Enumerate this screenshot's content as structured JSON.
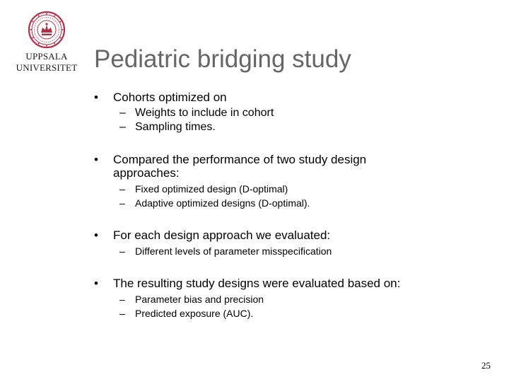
{
  "logo": {
    "line1": "UPPSALA",
    "line2": "UNIVERSITET",
    "seal_color": "#b0304a"
  },
  "slide": {
    "title": "Pediatric bridging study",
    "bullet_symbol": "•",
    "dash_symbol": "–",
    "bullets": [
      {
        "text": "Cohorts optimized on",
        "subs": [
          "Weights to include in cohort",
          "Sampling times."
        ]
      },
      {
        "text_line1": "Compared the performance of two study design",
        "text_line2": "approaches:",
        "subs": [
          "Fixed optimized design (D-optimal)",
          "Adaptive optimized designs (D-optimal)."
        ]
      },
      {
        "text": "For each design approach we evaluated:",
        "subs": [
          "Different levels of parameter misspecification"
        ]
      },
      {
        "text": "The resulting study designs were evaluated based on:",
        "subs": [
          "Parameter bias and precision",
          "Predicted exposure (AUC)."
        ]
      }
    ],
    "page_number": "25"
  }
}
